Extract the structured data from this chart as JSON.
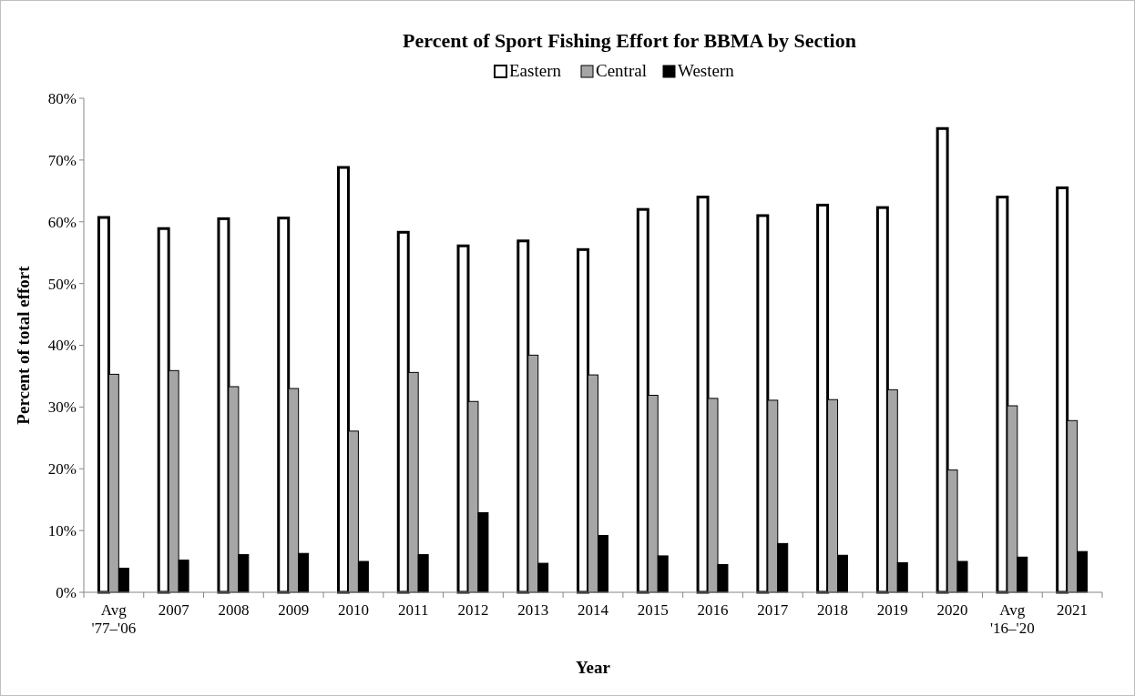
{
  "chart_data": {
    "type": "bar",
    "title": "Percent of Sport Fishing Effort for BBMA by Section",
    "xlabel": "Year",
    "ylabel": "Percent of total effort",
    "categories": [
      "Avg\n'77–'06",
      "2007",
      "2008",
      "2009",
      "2010",
      "2011",
      "2012",
      "2013",
      "2014",
      "2015",
      "2016",
      "2017",
      "2018",
      "2019",
      "2020",
      "Avg\n'16–'20",
      "2021"
    ],
    "series": [
      {
        "name": "Eastern",
        "color": "#ffffff",
        "values": [
          60.7,
          58.9,
          60.5,
          60.6,
          68.8,
          58.3,
          56.1,
          56.9,
          55.5,
          62.0,
          64.0,
          61.0,
          62.7,
          62.3,
          75.1,
          64.0,
          65.5
        ]
      },
      {
        "name": "Central",
        "color": "#a6a6a6",
        "values": [
          35.3,
          35.9,
          33.3,
          33.0,
          26.1,
          35.6,
          30.9,
          38.4,
          35.2,
          31.9,
          31.4,
          31.1,
          31.2,
          32.8,
          19.8,
          30.2,
          27.8
        ]
      },
      {
        "name": "Western",
        "color": "#000000",
        "values": [
          3.9,
          5.2,
          6.1,
          6.3,
          5.0,
          6.1,
          12.9,
          4.7,
          9.2,
          5.9,
          4.5,
          7.9,
          6.0,
          4.8,
          5.0,
          5.7,
          6.6
        ]
      }
    ],
    "ylim": [
      0,
      80
    ],
    "yticks": [
      {
        "value": 0,
        "label": "0%"
      },
      {
        "value": 10,
        "label": "10%"
      },
      {
        "value": 20,
        "label": "20%"
      },
      {
        "value": 30,
        "label": "30%"
      },
      {
        "value": 40,
        "label": "40%"
      },
      {
        "value": 50,
        "label": "50%"
      },
      {
        "value": 60,
        "label": "60%"
      },
      {
        "value": 70,
        "label": "70%"
      },
      {
        "value": 80,
        "label": "80%"
      }
    ],
    "legend": "top",
    "grid": false
  }
}
